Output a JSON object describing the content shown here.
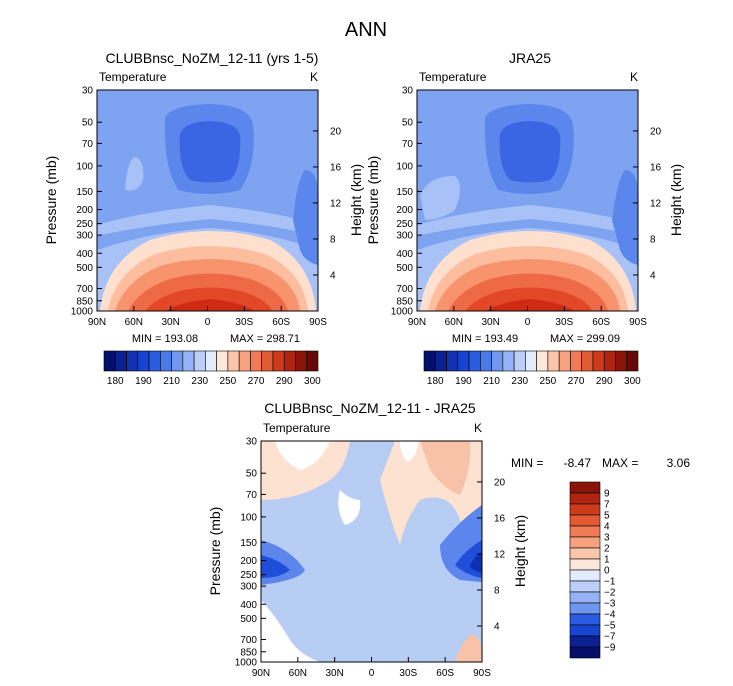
{
  "page": {
    "title": "ANN"
  },
  "colors": {
    "level_fill": [
      "#1e4fd9",
      "#3a66e4",
      "#5b86ec",
      "#7ea3f1",
      "#a8c1f6",
      "#ffe0cf",
      "#fdbe9f",
      "#f7946e",
      "#ee6a46",
      "#e24728",
      "#cf2a14"
    ],
    "diff_fill": [
      "#b7cdf4",
      "#ffffff",
      "#fde1d1",
      "#f8c2a8",
      "#5c86ec",
      "#1f4fd8",
      "#0d2fb2"
    ],
    "bar_main": [
      "#050e6a",
      "#0c2191",
      "#1133b0",
      "#1745cf",
      "#2b5be0",
      "#4a79ea",
      "#6f97f0",
      "#95b3f4",
      "#bccff8",
      "#e3ecfc",
      "#fde7da",
      "#fbc6ac",
      "#f7a17e",
      "#f07c55",
      "#e45a35",
      "#cf3a1d",
      "#b02511",
      "#8a140a",
      "#660909"
    ],
    "bar_diff": [
      "#050e6a",
      "#0c2191",
      "#1133b0",
      "#1745cf",
      "#2b5be0",
      "#4a79ea",
      "#6f97f0",
      "#95b3f4",
      "#bccff8",
      "#e3ecfc",
      "#fde7da",
      "#fbc6ac",
      "#f7a17e",
      "#f07c55",
      "#e45a35",
      "#cf3a1d",
      "#b02511",
      "#8a140a",
      "#660909"
    ]
  },
  "chart_data": [
    {
      "type": "heatmap",
      "title": "CLUBBnsc_NoZM_12-11 (yrs 1-5)",
      "variable": "Temperature",
      "units": "K",
      "x_ticks": [
        "90N",
        "60N",
        "30N",
        "0",
        "30S",
        "60S",
        "90S"
      ],
      "y_ticks_pressure": [
        "30",
        "50",
        "70",
        "100",
        "150",
        "200",
        "250",
        "300",
        "400",
        "500",
        "700",
        "850",
        "1000"
      ],
      "y_ticks_height": [
        "20",
        "16",
        "12",
        "8",
        "4"
      ],
      "ylabel_left": "Pressure (mb)",
      "ylabel_right": "Height (km)",
      "min_label": "MIN = 193.08",
      "max_label": "MAX = 298.71",
      "colorbar_labels": [
        "180",
        "190",
        "210",
        "230",
        "250",
        "270",
        "290",
        "300"
      ],
      "ylim_pressure_mb": [
        30,
        1000
      ],
      "xlim_lat": [
        90,
        -90
      ]
    },
    {
      "type": "heatmap",
      "title": "JRA25",
      "variable": "Temperature",
      "units": "K",
      "x_ticks": [
        "90N",
        "60N",
        "30N",
        "0",
        "30S",
        "60S",
        "90S"
      ],
      "y_ticks_pressure": [
        "30",
        "50",
        "70",
        "100",
        "150",
        "200",
        "250",
        "300",
        "400",
        "500",
        "700",
        "850",
        "1000"
      ],
      "y_ticks_height": [
        "20",
        "16",
        "12",
        "8",
        "4"
      ],
      "ylabel_left": "Pressure (mb)",
      "ylabel_right": "Height (km)",
      "min_label": "MIN = 193.49",
      "max_label": "MAX = 299.09",
      "colorbar_labels": [
        "180",
        "190",
        "210",
        "230",
        "250",
        "270",
        "290",
        "300"
      ],
      "ylim_pressure_mb": [
        30,
        1000
      ],
      "xlim_lat": [
        90,
        -90
      ]
    },
    {
      "type": "heatmap",
      "title": "CLUBBnsc_NoZM_12-11 - JRA25",
      "variable": "Temperature",
      "units": "K",
      "x_ticks": [
        "90N",
        "60N",
        "30N",
        "0",
        "30S",
        "60S",
        "90S"
      ],
      "y_ticks_pressure": [
        "30",
        "50",
        "70",
        "100",
        "150",
        "200",
        "250",
        "300",
        "400",
        "500",
        "700",
        "850",
        "1000"
      ],
      "y_ticks_height": [
        "20",
        "16",
        "12",
        "8",
        "4"
      ],
      "ylabel_left": "Pressure (mb)",
      "ylabel_right": "Height (km)",
      "min_text": "MIN =",
      "min_value": "-8.47",
      "max_text": "MAX =",
      "max_value": "3.06",
      "colorbar_labels": [
        "9",
        "7",
        "5",
        "4",
        "3",
        "2",
        "1",
        "0",
        "−1",
        "−2",
        "−3",
        "−4",
        "−5",
        "−7",
        "−9"
      ],
      "ylim_pressure_mb": [
        30,
        1000
      ],
      "xlim_lat": [
        90,
        -90
      ]
    }
  ]
}
